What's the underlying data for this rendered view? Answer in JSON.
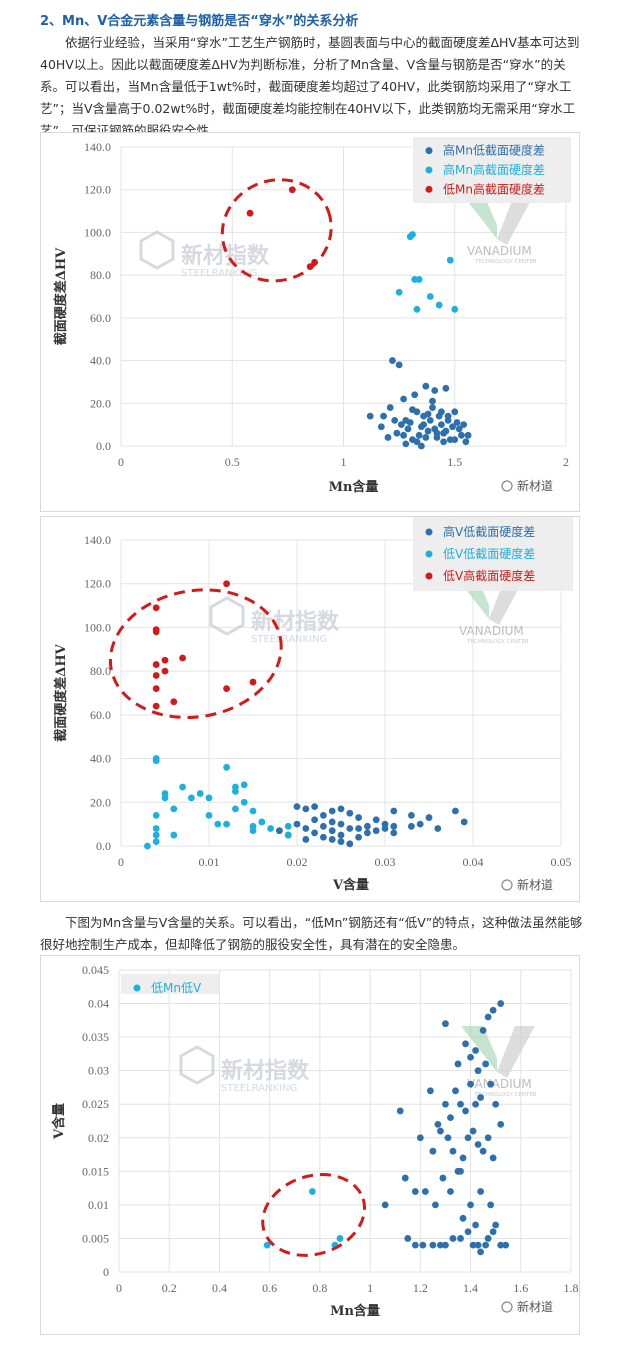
{
  "article": {
    "heading": "2、Mn、V合金元素含量与钢筋是否“穿水”的关系分析",
    "para1": "依据行业经验，当采用“穿水”工艺生产钢筋时，基圆表面与中心的截面硬度差ΔHV基本可达到40HV以上。因此以截面硬度差ΔHV为判断标准，分析了Mn含量、V含量与钢筋是否“穿水”的关系。可以看出，当Mn含量低于1wt%时，截面硬度差均超过了40HV，此类钢筋均采用了“穿水工艺”；当V含量高于0.02wt%时，截面硬度差均能控制在40HV以下，此类钢筋均无需采用“穿水工艺”，可保证钢筋的服役安全性。",
    "para2": "下图为Mn含量与V含量的关系。可以看出，“低Mn”钢筋还有“低V”的特点，这种做法虽然能够很好地控制生产成本，但却降低了钢筋的服役安全性，具有潜在的安全隐患。"
  },
  "watermark": {
    "brand_cn": "新材指数",
    "brand_en": "STEELRANKING",
    "vanadium": "VANADIUM",
    "vanadium_sub": "TECHNOLOGY CENTER",
    "badge": "新材道"
  },
  "colors": {
    "dark_blue": "#2e6fad",
    "light_blue": "#1cb0e0",
    "red": "#d11a1a",
    "ellipse": "#d11a1a"
  },
  "chart_data": [
    {
      "type": "scatter",
      "xlabel": "Mn含量",
      "ylabel": "截面硬度差ΔHV",
      "xlim": [
        0,
        2
      ],
      "ylim": [
        0,
        140
      ],
      "xticks": [
        "0",
        "0.5",
        "1",
        "1.5",
        "2"
      ],
      "yticks": [
        "0.0",
        "20.0",
        "40.0",
        "60.0",
        "80.0",
        "100.0",
        "120.0",
        "140.0"
      ],
      "grid": true,
      "legend_position": "top-right",
      "series": [
        {
          "name": "高Mn低截面硬度差",
          "color": "dark_blue",
          "points": [
            [
              1.22,
              40
            ],
            [
              1.25,
              38
            ],
            [
              1.27,
              22
            ],
            [
              1.32,
              24
            ],
            [
              1.37,
              28
            ],
            [
              1.41,
              26
            ],
            [
              1.46,
              27
            ],
            [
              1.12,
              14
            ],
            [
              1.17,
              9
            ],
            [
              1.21,
              18
            ],
            [
              1.28,
              12
            ],
            [
              1.33,
              16
            ],
            [
              1.36,
              10
            ],
            [
              1.4,
              18
            ],
            [
              1.43,
              14
            ],
            [
              1.47,
              12
            ],
            [
              1.5,
              16
            ],
            [
              1.52,
              8
            ],
            [
              1.2,
              4
            ],
            [
              1.24,
              6
            ],
            [
              1.29,
              8
            ],
            [
              1.31,
              3
            ],
            [
              1.34,
              5
            ],
            [
              1.38,
              7
            ],
            [
              1.42,
              4
            ],
            [
              1.45,
              6
            ],
            [
              1.48,
              3
            ],
            [
              1.53,
              5
            ],
            [
              1.55,
              2
            ],
            [
              1.26,
              10
            ],
            [
              1.3,
              11
            ],
            [
              1.35,
              9
            ],
            [
              1.39,
              12
            ],
            [
              1.44,
              10
            ],
            [
              1.49,
              9
            ],
            [
              1.51,
              11
            ],
            [
              1.23,
              12
            ],
            [
              1.27,
              5
            ],
            [
              1.33,
              2
            ],
            [
              1.37,
              4
            ],
            [
              1.41,
              8
            ],
            [
              1.46,
              7
            ],
            [
              1.5,
              3
            ],
            [
              1.54,
              10
            ],
            [
              1.36,
              14
            ],
            [
              1.4,
              21
            ],
            [
              1.44,
              16
            ],
            [
              1.31,
              17
            ],
            [
              1.38,
              15
            ],
            [
              1.42,
              6
            ],
            [
              1.18,
              14
            ],
            [
              1.28,
              1
            ],
            [
              1.45,
              2
            ],
            [
              1.56,
              5
            ],
            [
              1.47,
              14
            ],
            [
              1.35,
              0
            ]
          ]
        },
        {
          "name": "高Mn高截面硬度差",
          "color": "light_blue",
          "points": [
            [
              1.3,
              98
            ],
            [
              1.31,
              99
            ],
            [
              1.32,
              78
            ],
            [
              1.34,
              78
            ],
            [
              1.33,
              64
            ],
            [
              1.39,
              70
            ],
            [
              1.43,
              66
            ],
            [
              1.48,
              87
            ],
            [
              1.5,
              64
            ],
            [
              1.25,
              72
            ]
          ]
        },
        {
          "name": "低Mn高截面硬度差",
          "color": "red",
          "points": [
            [
              0.58,
              109
            ],
            [
              0.77,
              120
            ],
            [
              0.85,
              84
            ],
            [
              0.87,
              86
            ]
          ]
        }
      ],
      "annotations": [
        "dashed-ellipse-around-low-Mn-points"
      ]
    },
    {
      "type": "scatter",
      "xlabel": "V含量",
      "ylabel": "截面硬度差ΔHV",
      "xlim": [
        0,
        0.05
      ],
      "ylim": [
        0,
        140
      ],
      "xticks": [
        "0",
        "0.01",
        "0.02",
        "0.03",
        "0.04",
        "0.05"
      ],
      "yticks": [
        "0.0",
        "20.0",
        "40.0",
        "60.0",
        "80.0",
        "100.0",
        "120.0",
        "140.0"
      ],
      "grid": true,
      "legend_position": "top-right",
      "series": [
        {
          "name": "高V低截面硬度差",
          "color": "dark_blue",
          "points": [
            [
              0.02,
              18
            ],
            [
              0.021,
              17
            ],
            [
              0.022,
              18
            ],
            [
              0.023,
              14
            ],
            [
              0.024,
              16
            ],
            [
              0.025,
              17
            ],
            [
              0.026,
              15
            ],
            [
              0.027,
              13
            ],
            [
              0.029,
              12
            ],
            [
              0.031,
              16
            ],
            [
              0.033,
              14
            ],
            [
              0.035,
              13
            ],
            [
              0.038,
              16
            ],
            [
              0.039,
              11
            ],
            [
              0.02,
              10
            ],
            [
              0.021,
              8
            ],
            [
              0.022,
              6
            ],
            [
              0.023,
              9
            ],
            [
              0.024,
              7
            ],
            [
              0.025,
              5
            ],
            [
              0.026,
              8
            ],
            [
              0.027,
              4
            ],
            [
              0.028,
              9
            ],
            [
              0.029,
              7
            ],
            [
              0.03,
              10
            ],
            [
              0.031,
              6
            ],
            [
              0.033,
              9
            ],
            [
              0.034,
              10
            ],
            [
              0.036,
              8
            ],
            [
              0.022,
              12
            ],
            [
              0.024,
              11
            ],
            [
              0.025,
              10
            ],
            [
              0.028,
              6
            ],
            [
              0.03,
              8
            ],
            [
              0.031,
              9
            ],
            [
              0.023,
              4
            ],
            [
              0.025,
              2
            ],
            [
              0.027,
              8
            ],
            [
              0.021,
              3
            ],
            [
              0.024,
              3
            ],
            [
              0.026,
              1
            ],
            [
              0.019,
              5
            ],
            [
              0.018,
              7
            ]
          ]
        },
        {
          "name": "低V低截面硬度差",
          "color": "light_blue",
          "points": [
            [
              0.004,
              40
            ],
            [
              0.004,
              39
            ],
            [
              0.005,
              24
            ],
            [
              0.005,
              22
            ],
            [
              0.006,
              17
            ],
            [
              0.007,
              27
            ],
            [
              0.009,
              24
            ],
            [
              0.01,
              22
            ],
            [
              0.01,
              14
            ],
            [
              0.012,
              36
            ],
            [
              0.013,
              25
            ],
            [
              0.013,
              17
            ],
            [
              0.014,
              28
            ],
            [
              0.014,
              20
            ],
            [
              0.015,
              16
            ],
            [
              0.015,
              9
            ],
            [
              0.016,
              11
            ],
            [
              0.017,
              8
            ],
            [
              0.004,
              14
            ],
            [
              0.004,
              8
            ],
            [
              0.004,
              5
            ],
            [
              0.004,
              2
            ],
            [
              0.003,
              0
            ],
            [
              0.006,
              5
            ],
            [
              0.008,
              22
            ],
            [
              0.011,
              10
            ],
            [
              0.012,
              10
            ],
            [
              0.013,
              27
            ],
            [
              0.015,
              7
            ],
            [
              0.019,
              9
            ],
            [
              0.019,
              5
            ]
          ]
        },
        {
          "name": "低V高截面硬度差",
          "color": "red",
          "points": [
            [
              0.004,
              109
            ],
            [
              0.004,
              99
            ],
            [
              0.004,
              98
            ],
            [
              0.004,
              83
            ],
            [
              0.004,
              78
            ],
            [
              0.004,
              72
            ],
            [
              0.004,
              64
            ],
            [
              0.005,
              85
            ],
            [
              0.005,
              80
            ],
            [
              0.006,
              66
            ],
            [
              0.007,
              86
            ],
            [
              0.012,
              120
            ],
            [
              0.012,
              72
            ],
            [
              0.015,
              75
            ]
          ]
        }
      ],
      "annotations": [
        "dashed-ellipse-around-low-V-points"
      ]
    },
    {
      "type": "scatter",
      "xlabel": "Mn含量",
      "ylabel": "V含量",
      "xlim": [
        0,
        1.8
      ],
      "ylim": [
        0,
        0.045
      ],
      "xticks": [
        "0",
        "0.2",
        "0.4",
        "0.6",
        "0.8",
        "1",
        "1.2",
        "1.4",
        "1.6",
        "1.8"
      ],
      "yticks": [
        "0",
        "0.005",
        "0.01",
        "0.015",
        "0.02",
        "0.025",
        "0.03",
        "0.035",
        "0.04",
        "0.045"
      ],
      "grid": true,
      "legend_position": "top-left",
      "series": [
        {
          "name": "",
          "color": "dark_blue",
          "points": [
            [
              1.3,
              0.037
            ],
            [
              1.35,
              0.031
            ],
            [
              1.38,
              0.034
            ],
            [
              1.4,
              0.032
            ],
            [
              1.42,
              0.033
            ],
            [
              1.43,
              0.03
            ],
            [
              1.45,
              0.036
            ],
            [
              1.47,
              0.038
            ],
            [
              1.49,
              0.039
            ],
            [
              1.52,
              0.04
            ],
            [
              1.12,
              0.024
            ],
            [
              1.24,
              0.027
            ],
            [
              1.27,
              0.022
            ],
            [
              1.3,
              0.025
            ],
            [
              1.32,
              0.023
            ],
            [
              1.34,
              0.027
            ],
            [
              1.36,
              0.025
            ],
            [
              1.38,
              0.024
            ],
            [
              1.4,
              0.028
            ],
            [
              1.42,
              0.025
            ],
            [
              1.44,
              0.026
            ],
            [
              1.46,
              0.031
            ],
            [
              1.48,
              0.028
            ],
            [
              1.5,
              0.025
            ],
            [
              1.52,
              0.022
            ],
            [
              1.2,
              0.02
            ],
            [
              1.25,
              0.018
            ],
            [
              1.28,
              0.021
            ],
            [
              1.31,
              0.02
            ],
            [
              1.33,
              0.018
            ],
            [
              1.35,
              0.015
            ],
            [
              1.37,
              0.017
            ],
            [
              1.39,
              0.02
            ],
            [
              1.41,
              0.021
            ],
            [
              1.43,
              0.019
            ],
            [
              1.45,
              0.018
            ],
            [
              1.47,
              0.02
            ],
            [
              1.49,
              0.017
            ],
            [
              1.14,
              0.014
            ],
            [
              1.18,
              0.012
            ],
            [
              1.22,
              0.012
            ],
            [
              1.26,
              0.01
            ],
            [
              1.29,
              0.014
            ],
            [
              1.32,
              0.012
            ],
            [
              1.36,
              0.015
            ],
            [
              1.4,
              0.01
            ],
            [
              1.44,
              0.012
            ],
            [
              1.48,
              0.01
            ],
            [
              1.06,
              0.01
            ],
            [
              1.15,
              0.005
            ],
            [
              1.18,
              0.004
            ],
            [
              1.21,
              0.004
            ],
            [
              1.25,
              0.004
            ],
            [
              1.28,
              0.004
            ],
            [
              1.3,
              0.004
            ],
            [
              1.33,
              0.005
            ],
            [
              1.36,
              0.005
            ],
            [
              1.39,
              0.006
            ],
            [
              1.41,
              0.004
            ],
            [
              1.43,
              0.004
            ],
            [
              1.44,
              0.003
            ],
            [
              1.46,
              0.004
            ],
            [
              1.49,
              0.006
            ],
            [
              1.5,
              0.007
            ],
            [
              1.52,
              0.004
            ],
            [
              1.54,
              0.004
            ],
            [
              1.37,
              0.008
            ],
            [
              1.42,
              0.007
            ],
            [
              1.47,
              0.005
            ]
          ]
        },
        {
          "name": "低Mn低V",
          "color": "light_blue",
          "points": [
            [
              0.59,
              0.004
            ],
            [
              0.77,
              0.012
            ],
            [
              0.86,
              0.004
            ],
            [
              0.88,
              0.005
            ]
          ]
        }
      ],
      "annotations": [
        "dashed-ellipse-around-low-Mn-low-V-points"
      ]
    }
  ]
}
